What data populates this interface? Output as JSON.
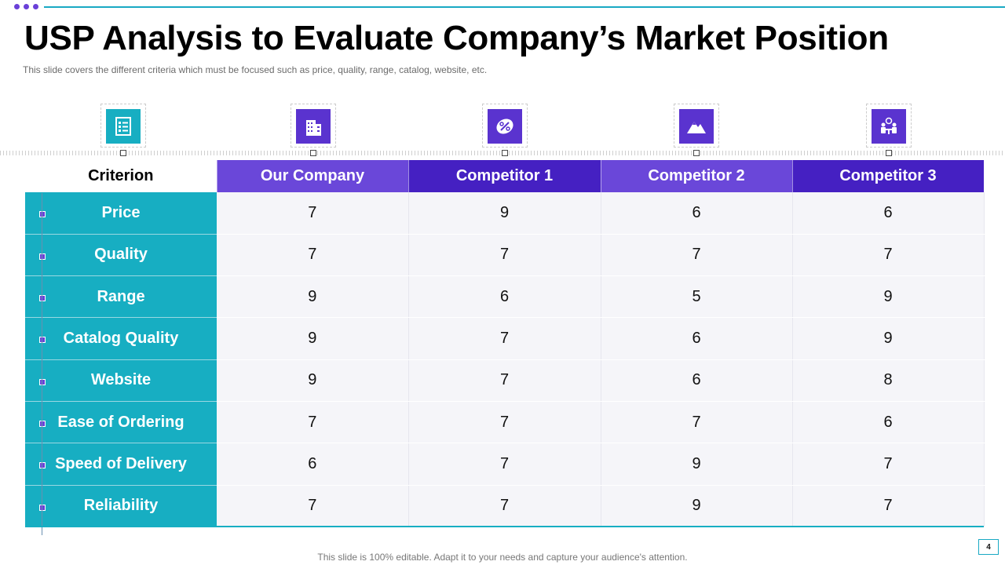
{
  "slide": {
    "title": "USP Analysis to Evaluate Company’s Market Position",
    "subtitle": "This slide covers the different  criteria which must be focused such as price, quality, range,  catalog, website, etc.",
    "footer": "This slide is 100% editable. Adapt it to your needs and capture your audience's attention.",
    "page_number": "4"
  },
  "colors": {
    "teal": "#17aec2",
    "purple_dark": "#4520c2",
    "purple_light": "#6a47d9"
  },
  "icons": [
    {
      "name": "checklist-icon"
    },
    {
      "name": "building-icon"
    },
    {
      "name": "percent-tag-icon"
    },
    {
      "name": "mountain-icon"
    },
    {
      "name": "meeting-icon"
    }
  ],
  "table": {
    "headers": [
      "Criterion",
      "Our Company",
      "Competitor 1",
      "Competitor 2",
      "Competitor 3"
    ],
    "rows": [
      {
        "criterion": "Price",
        "values": [
          "7",
          "9",
          "6",
          "6"
        ]
      },
      {
        "criterion": "Quality",
        "values": [
          "7",
          "7",
          "7",
          "7"
        ]
      },
      {
        "criterion": "Range",
        "values": [
          "9",
          "6",
          "5",
          "9"
        ]
      },
      {
        "criterion": "Catalog Quality",
        "values": [
          "9",
          "7",
          "6",
          "9"
        ]
      },
      {
        "criterion": "Website",
        "values": [
          "9",
          "7",
          "6",
          "8"
        ]
      },
      {
        "criterion": "Ease of Ordering",
        "values": [
          "7",
          "7",
          "7",
          "6"
        ]
      },
      {
        "criterion": "Speed of Delivery",
        "values": [
          "6",
          "7",
          "9",
          "7"
        ]
      },
      {
        "criterion": "Reliability",
        "values": [
          "7",
          "7",
          "9",
          "7"
        ]
      }
    ]
  }
}
